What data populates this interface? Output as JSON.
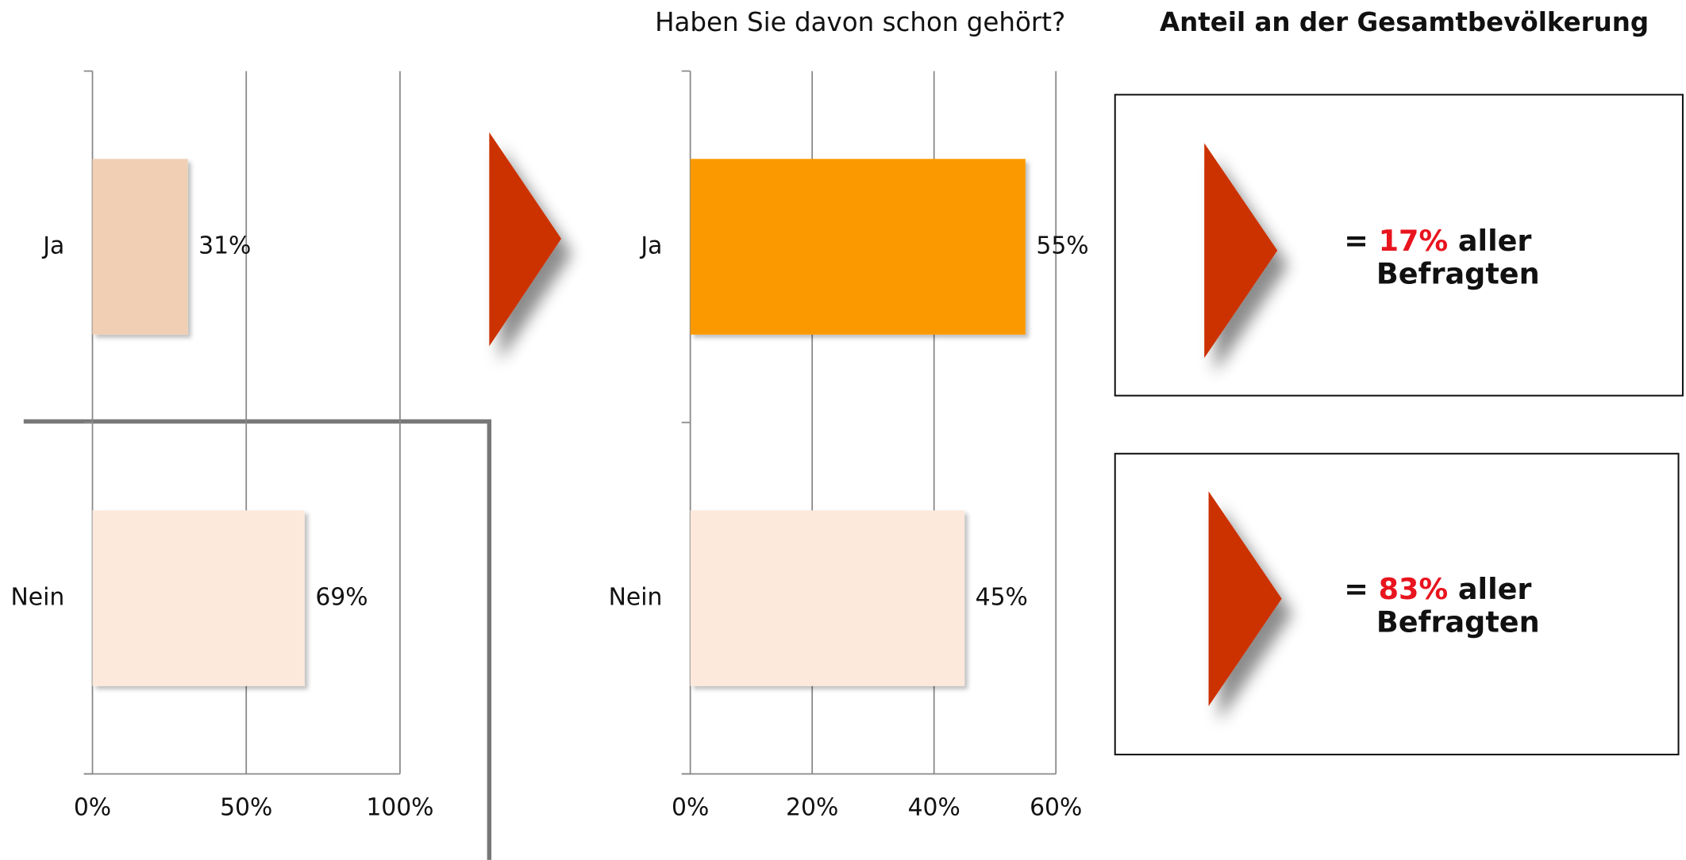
{
  "chart_data": [
    {
      "type": "bar",
      "categories": [
        "Ja",
        "Nein"
      ],
      "values": [
        31,
        69
      ],
      "value_labels": [
        "31%",
        "69%"
      ],
      "colors": [
        "#f0cfb4",
        "#fce9dc"
      ],
      "xlim": [
        0,
        100
      ],
      "xticks": [
        {
          "value": 0,
          "label": "0%"
        },
        {
          "value": 50,
          "label": "50%"
        },
        {
          "value": 100,
          "label": "100%"
        }
      ],
      "grid": true
    },
    {
      "type": "bar",
      "title": "Haben Sie davon schon gehört?",
      "categories": [
        "Ja",
        "Nein"
      ],
      "values": [
        55,
        45
      ],
      "value_labels": [
        "55%",
        "45%"
      ],
      "colors": [
        "#fb9a00",
        "#fce9dc"
      ],
      "xlim": [
        0,
        60
      ],
      "xticks": [
        {
          "value": 0,
          "label": "0%"
        },
        {
          "value": 20,
          "label": "20%"
        },
        {
          "value": 40,
          "label": "40%"
        },
        {
          "value": 60,
          "label": "60%"
        }
      ],
      "grid": true
    }
  ],
  "panel": {
    "title": "Anteil an der Gesamtbevölkerung",
    "boxes": [
      {
        "prefix": "=",
        "share": "17%",
        "suffix": "aller",
        "line2": "Befragten"
      },
      {
        "prefix": "=",
        "share": "83%",
        "suffix": "aller",
        "line2": "Befragten"
      }
    ]
  }
}
